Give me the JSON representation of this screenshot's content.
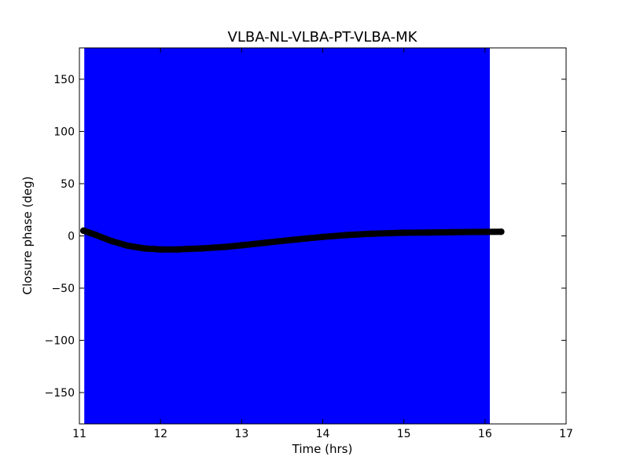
{
  "chart_data": {
    "type": "scatter",
    "title": "VLBA-NL-VLBA-PT-VLBA-MK",
    "xlabel": "Time (hrs)",
    "ylabel": "Closure phase (deg)",
    "xlim": [
      11,
      17
    ],
    "ylim": [
      -180,
      180
    ],
    "xticks": [
      11,
      12,
      13,
      14,
      15,
      16,
      17
    ],
    "yticks": [
      -150,
      -100,
      -50,
      0,
      50,
      100,
      150
    ],
    "xtick_labels": [
      "11",
      "12",
      "13",
      "14",
      "15",
      "16",
      "17"
    ],
    "ytick_labels": [
      "−150",
      "−100",
      "−50",
      "0",
      "50",
      "100",
      "150"
    ],
    "grid": false,
    "shaded_region": {
      "x_start": 11.06,
      "x_end": 16.06,
      "color": "#0000ff"
    },
    "marker_color": "#000000",
    "x": [
      11.05,
      11.2,
      11.4,
      11.6,
      11.8,
      12.0,
      12.2,
      12.5,
      12.8,
      13.0,
      13.3,
      13.6,
      14.0,
      14.3,
      14.6,
      15.0,
      15.3,
      15.6,
      16.0,
      16.2
    ],
    "y": [
      5,
      1,
      -5,
      -9.5,
      -12,
      -13,
      -13,
      -12,
      -10.5,
      -9,
      -6.5,
      -4,
      -1,
      0.8,
      2,
      3,
      3.2,
      3.5,
      3.8,
      4
    ]
  }
}
